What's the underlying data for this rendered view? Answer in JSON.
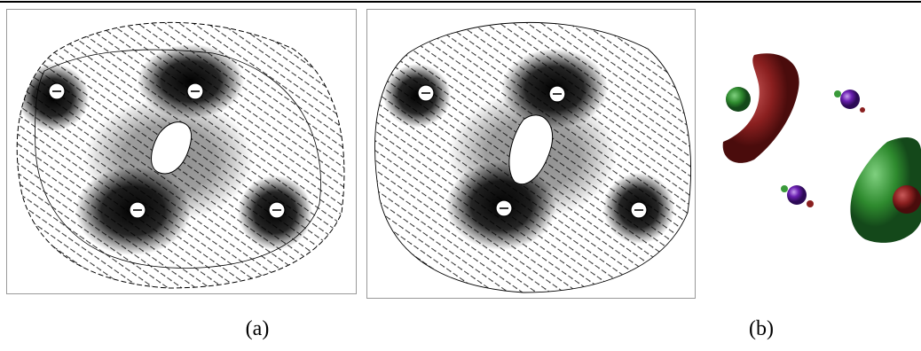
{
  "captions": {
    "a": "(a)",
    "b": "(b)"
  }
}
